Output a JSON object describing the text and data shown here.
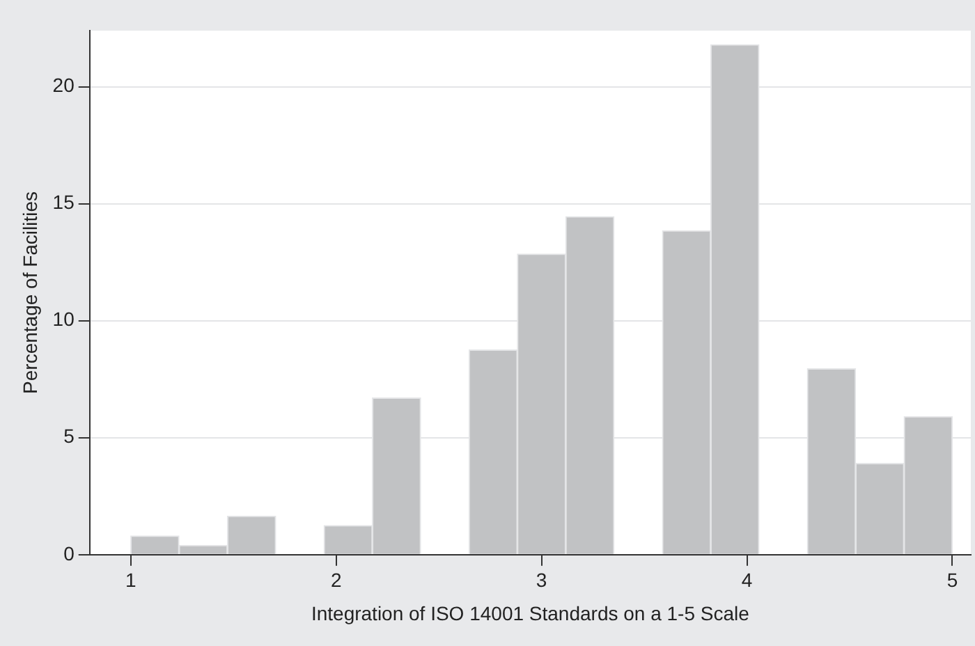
{
  "chart_data": {
    "type": "histogram",
    "xlabel": "Integration of ISO 14001 Standards on a 1-5 Scale",
    "ylabel": "Percentage of Facilities",
    "bins": [
      1,
      1.235,
      1.471,
      1.706,
      1.941,
      2.176,
      2.412,
      2.647,
      2.882,
      3.118,
      3.353,
      3.588,
      3.824,
      4.059,
      4.294,
      4.529,
      4.765,
      5
    ],
    "values": [
      0.8,
      0.4,
      1.65,
      0,
      1.25,
      6.7,
      0,
      8.75,
      12.85,
      14.45,
      0,
      13.85,
      21.8,
      0,
      7.95,
      3.9,
      5.9
    ],
    "color": "#c1c2c4",
    "xlim": [
      0.8,
      5.09
    ],
    "xticks": [
      1,
      2,
      3,
      4,
      5
    ],
    "ylim": [
      0,
      22.4
    ],
    "yticks": [
      0,
      5,
      10,
      15,
      20
    ],
    "grid": "y",
    "legend": false
  }
}
